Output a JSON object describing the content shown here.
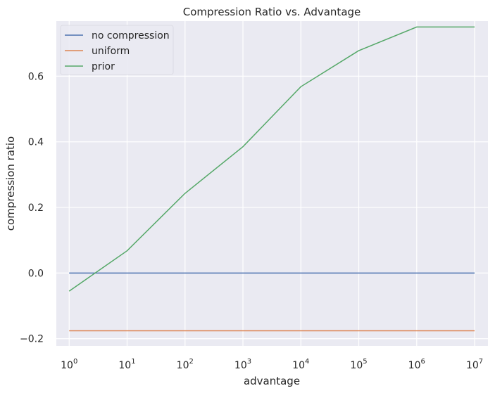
{
  "chart_data": {
    "type": "line",
    "title": "Compression Ratio vs. Advantage",
    "xlabel": "advantage",
    "ylabel": "compression ratio",
    "x_scale": "log",
    "x": [
      1,
      10,
      100,
      1000,
      10000,
      100000,
      1000000,
      10000000
    ],
    "x_ticks": [
      {
        "base": "10",
        "exp": "0"
      },
      {
        "base": "10",
        "exp": "1"
      },
      {
        "base": "10",
        "exp": "2"
      },
      {
        "base": "10",
        "exp": "3"
      },
      {
        "base": "10",
        "exp": "4"
      },
      {
        "base": "10",
        "exp": "5"
      },
      {
        "base": "10",
        "exp": "6"
      },
      {
        "base": "10",
        "exp": "7"
      }
    ],
    "y_ticks": [
      -0.2,
      0.0,
      0.2,
      0.4,
      0.6
    ],
    "y_tick_labels": [
      "−0.2",
      "0.0",
      "0.2",
      "0.4",
      "0.6"
    ],
    "xlim": [
      0.6,
      17000000
    ],
    "ylim": [
      -0.222,
      0.768
    ],
    "grid": true,
    "legend_position": "top-left",
    "series": [
      {
        "name": "no compression",
        "color": "#4c72b0",
        "values": [
          0,
          0,
          0,
          0,
          0,
          0,
          0,
          0
        ]
      },
      {
        "name": "uniform",
        "color": "#dd8452",
        "values": [
          -0.176,
          -0.176,
          -0.176,
          -0.176,
          -0.176,
          -0.176,
          -0.176,
          -0.176
        ]
      },
      {
        "name": "prior",
        "color": "#55a868",
        "values": [
          -0.055,
          0.068,
          0.243,
          0.385,
          0.568,
          0.678,
          0.75,
          0.75
        ]
      }
    ]
  }
}
